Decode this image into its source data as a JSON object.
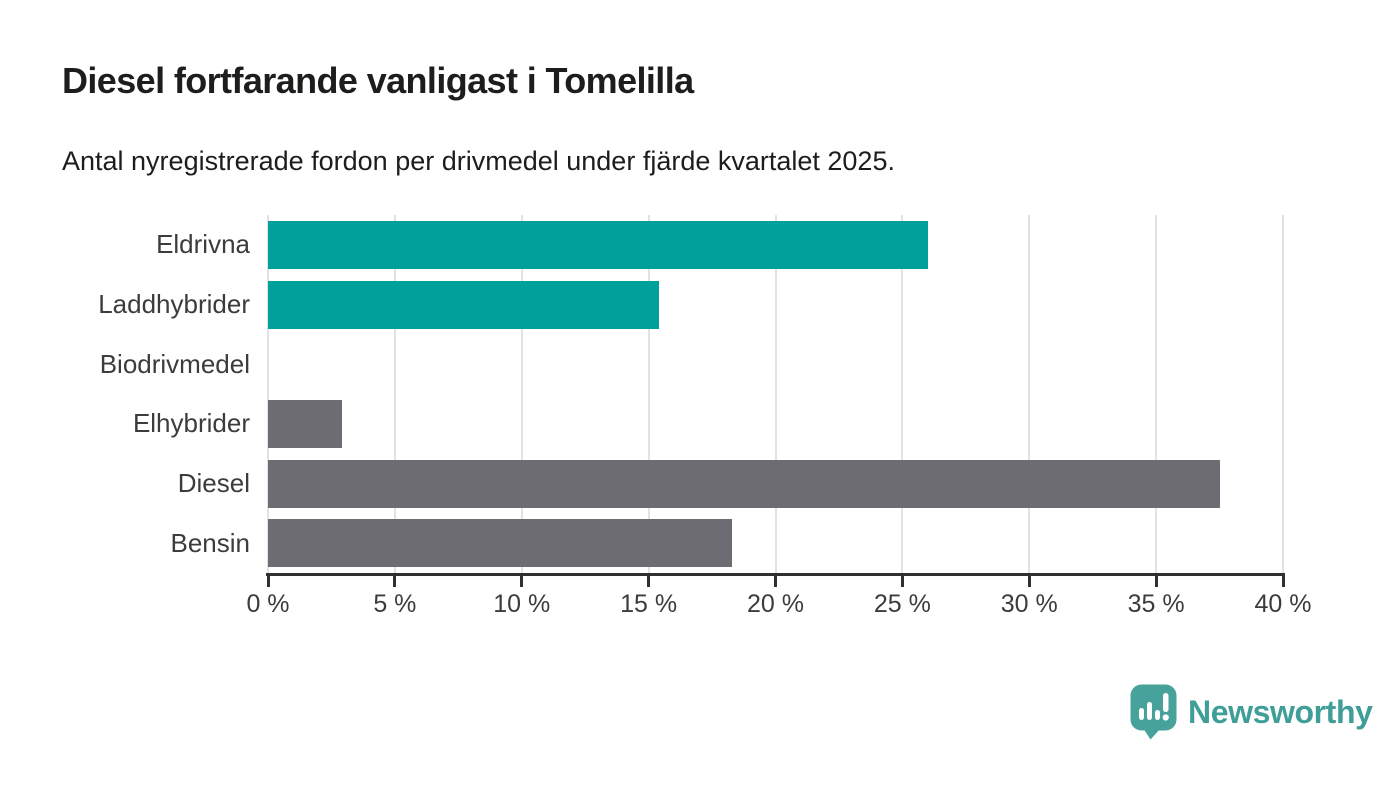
{
  "chart_data": {
    "type": "bar",
    "orientation": "horizontal",
    "title": "Diesel fortfarande vanligast i Tomelilla",
    "subtitle": "Antal nyregistrerade fordon per drivmedel under fjärde kvartalet 2025.",
    "categories": [
      "Eldrivna",
      "Laddhybrider",
      "Biodrivmedel",
      "Elhybrider",
      "Diesel",
      "Bensin"
    ],
    "values": [
      26.0,
      15.4,
      0,
      2.9,
      37.5,
      18.3
    ],
    "unit": "%",
    "xlabel": "",
    "ylabel": "",
    "xlim": [
      0,
      40
    ],
    "x_ticks": [
      0,
      5,
      10,
      15,
      20,
      25,
      30,
      35,
      40
    ],
    "x_tick_labels": [
      "0 %",
      "5 %",
      "10 %",
      "15 %",
      "20 %",
      "25 %",
      "30 %",
      "35 %",
      "40 %"
    ],
    "bar_colors": [
      "#00a19a",
      "#00a19a",
      "#00a19a",
      "#6d6c72",
      "#6d6c72",
      "#6d6c72"
    ],
    "grid": true,
    "legend": false
  },
  "branding": {
    "logo_text": "Newsworthy",
    "logo_icon": "newsworthy-speech-bubble-barchart-icon",
    "logo_color": "#3f9e97",
    "logo_icon_color": "#46a29a"
  },
  "colors": {
    "teal_bar": "#00a19a",
    "gray_bar": "#6d6c72",
    "gridline": "#e2e2e2",
    "axis": "#303030",
    "text": "#1d1d1b",
    "label_text": "#3c3c3c",
    "background": "#ffffff"
  }
}
